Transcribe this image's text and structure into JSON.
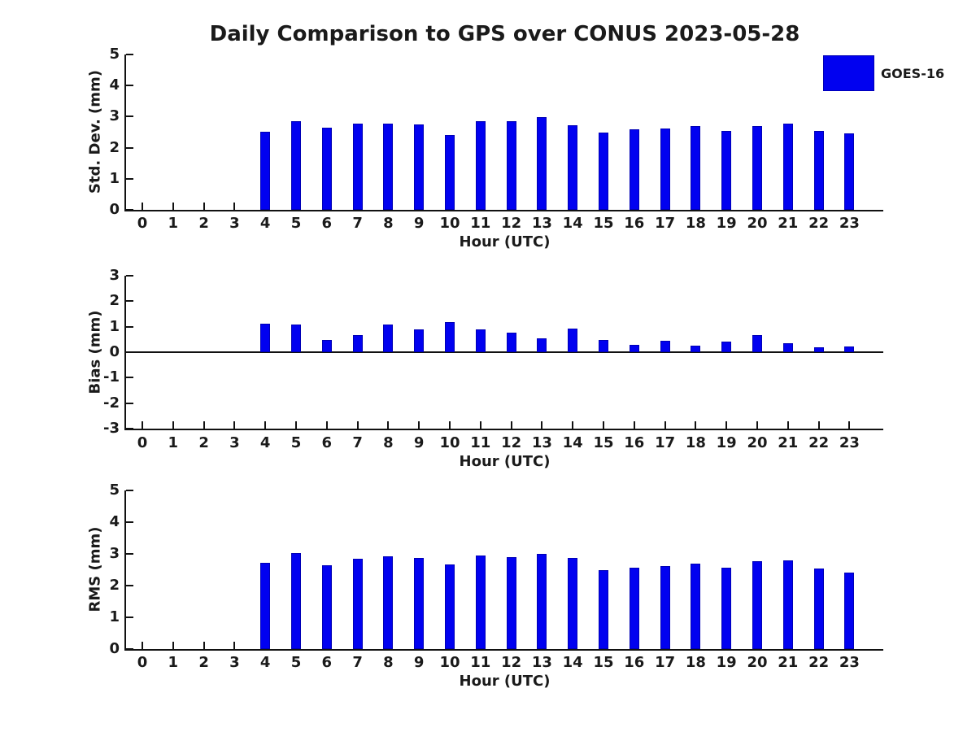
{
  "title": "Daily Comparison to GPS over CONUS 2023-05-28",
  "legend": {
    "label": "GOES-16",
    "color": "#0101f0",
    "position": "top-right-outside"
  },
  "colors": {
    "bar_fill": "#0101f0",
    "bar_edge": "#0000b5",
    "axis": "#111111",
    "background": "#ffffff"
  },
  "chart_data": [
    {
      "type": "bar",
      "name": "std-dev",
      "ylabel": "Std. Dev. (mm)",
      "xlabel": "Hour (UTC)",
      "ylim": [
        0,
        5
      ],
      "yticks": [
        0,
        1,
        2,
        3,
        4,
        5
      ],
      "grid": false,
      "categories": [
        0,
        1,
        2,
        3,
        4,
        5,
        6,
        7,
        8,
        9,
        10,
        11,
        12,
        13,
        14,
        15,
        16,
        17,
        18,
        19,
        20,
        21,
        22,
        23
      ],
      "values": [
        null,
        null,
        null,
        null,
        2.51,
        2.85,
        2.65,
        2.77,
        2.77,
        2.74,
        2.41,
        2.85,
        2.85,
        2.98,
        2.72,
        2.49,
        2.59,
        2.62,
        2.69,
        2.54,
        2.7,
        2.77,
        2.54,
        2.46
      ],
      "series_name": "GOES-16"
    },
    {
      "type": "bar",
      "name": "bias",
      "ylabel": "Bias (mm)",
      "xlabel": "Hour (UTC)",
      "ylim": [
        -3,
        3
      ],
      "yticks": [
        -3,
        -2,
        -1,
        0,
        1,
        2,
        3
      ],
      "zero_line": true,
      "grid": false,
      "categories": [
        0,
        1,
        2,
        3,
        4,
        5,
        6,
        7,
        8,
        9,
        10,
        11,
        12,
        13,
        14,
        15,
        16,
        17,
        18,
        19,
        20,
        21,
        22,
        23
      ],
      "values": [
        null,
        null,
        null,
        null,
        1.13,
        1.07,
        0.47,
        0.66,
        1.09,
        0.9,
        1.19,
        0.88,
        0.77,
        0.55,
        0.92,
        0.48,
        0.28,
        0.44,
        0.27,
        0.41,
        0.67,
        0.35,
        0.2,
        0.23
      ],
      "series_name": "GOES-16"
    },
    {
      "type": "bar",
      "name": "rms",
      "ylabel": "RMS (mm)",
      "xlabel": "Hour (UTC)",
      "ylim": [
        0,
        5
      ],
      "yticks": [
        0,
        1,
        2,
        3,
        4,
        5
      ],
      "grid": false,
      "categories": [
        0,
        1,
        2,
        3,
        4,
        5,
        6,
        7,
        8,
        9,
        10,
        11,
        12,
        13,
        14,
        15,
        16,
        17,
        18,
        19,
        20,
        21,
        22,
        23
      ],
      "values": [
        null,
        null,
        null,
        null,
        2.73,
        3.02,
        2.65,
        2.84,
        2.93,
        2.86,
        2.66,
        2.96,
        2.91,
        2.99,
        2.86,
        2.5,
        2.56,
        2.62,
        2.68,
        2.56,
        2.76,
        2.79,
        2.53,
        2.42
      ],
      "series_name": "GOES-16"
    }
  ]
}
